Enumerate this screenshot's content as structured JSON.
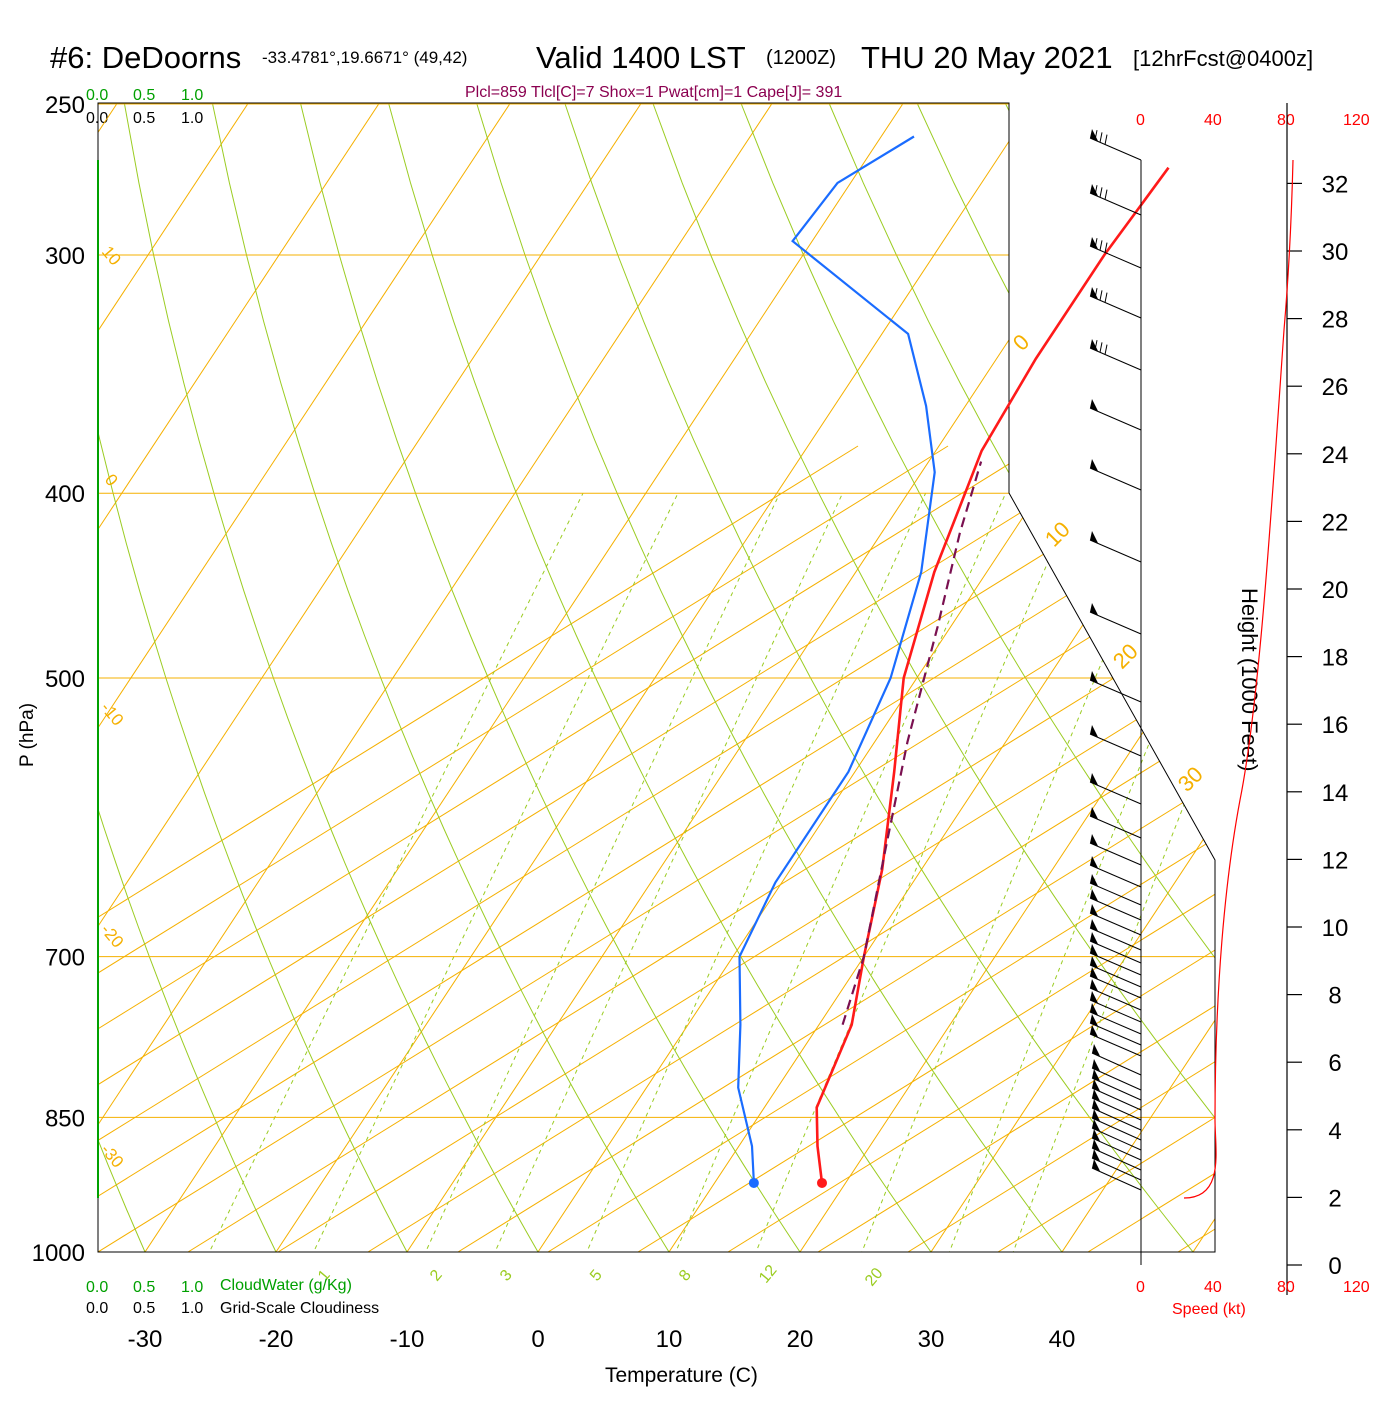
{
  "header": {
    "station": "#6: DeDoorns",
    "coords": "-33.4781°,19.6671° (49,42)",
    "valid": "Valid 1400 LST",
    "zulu": "(1200Z)",
    "date": "THU 20 May 2021",
    "forecast": "[12hrFcst@0400z]",
    "indices": "Plcl=859 Tlcl[C]=7 Shox=1 Pwat[cm]=1 Cape[J]= 391"
  },
  "scales": {
    "cloud_water_top": [
      "0.0",
      "0.5",
      "1.0"
    ],
    "cloudiness_top": [
      "0.0",
      "0.5",
      "1.0"
    ],
    "cloud_water_bottom": [
      "0.0",
      "0.5",
      "1.0"
    ],
    "cloud_water_label": "CloudWater (g/Kg)",
    "cloudiness_bottom": [
      "0.0",
      "0.5",
      "1.0"
    ],
    "cloudiness_label": "Grid-Scale Cloudiness",
    "speed_ticks": [
      "0",
      "40",
      "80",
      "120"
    ],
    "speed_label": "Speed (kt)"
  },
  "colors": {
    "isotherm": "#f5b000",
    "dry_adiabat": "#9bcc22",
    "mixing_ratio": "#9bcc22",
    "temperature": "#ff1a1a",
    "dewpoint": "#1a6cff",
    "parcel": "#7a1050",
    "cloud_axis": "#00a000",
    "speed": "#ff0000"
  },
  "chart_data": {
    "type": "line",
    "title": "#6: DeDoorns",
    "xlabel": "Temperature (C)",
    "ylabel": "P (hPa)",
    "y2label": "Height (1000 Feet)",
    "x_ticks": [
      -30,
      -20,
      -10,
      0,
      10,
      20,
      30,
      40
    ],
    "pressure_levels": [
      250,
      300,
      400,
      500,
      700,
      850,
      1000
    ],
    "height_ticks_kft": [
      0,
      2,
      4,
      6,
      8,
      10,
      12,
      14,
      16,
      18,
      20,
      22,
      24,
      26,
      28,
      30,
      32
    ],
    "isotherm_labels": [
      "10",
      "0",
      "-10",
      "-20",
      "-30",
      "0",
      "10",
      "20",
      "30"
    ],
    "mixing_ratio_labels": [
      "1",
      "2",
      "3",
      "5",
      "8",
      "12",
      "20"
    ],
    "series": [
      {
        "name": "Temperature",
        "points": [
          [
            18.2,
            920
          ],
          [
            16.0,
            880
          ],
          [
            14.0,
            840
          ],
          [
            12.5,
            760
          ],
          [
            10.0,
            700
          ],
          [
            7.0,
            630
          ],
          [
            3.0,
            560
          ],
          [
            -1.0,
            500
          ],
          [
            -4.0,
            440
          ],
          [
            -6.5,
            380
          ],
          [
            -7.0,
            340
          ],
          [
            -7.0,
            300
          ],
          [
            -6.5,
            270
          ]
        ]
      },
      {
        "name": "Dewpoint",
        "points": [
          [
            13.0,
            920
          ],
          [
            11.0,
            880
          ],
          [
            7.0,
            820
          ],
          [
            4.0,
            760
          ],
          [
            0.5,
            700
          ],
          [
            -0.5,
            640
          ],
          [
            -0.5,
            560
          ],
          [
            -2.0,
            500
          ],
          [
            -5.0,
            440
          ],
          [
            -9.0,
            390
          ],
          [
            -13.0,
            360
          ],
          [
            -18.0,
            330
          ],
          [
            -31.5,
            295
          ],
          [
            -31.0,
            275
          ],
          [
            -27.5,
            260
          ]
        ]
      },
      {
        "name": "Parcel",
        "points": [
          [
            11.8,
            760
          ],
          [
            10.0,
            700
          ],
          [
            6.0,
            610
          ],
          [
            2.5,
            540
          ],
          [
            -1.0,
            470
          ],
          [
            -4.0,
            420
          ],
          [
            -6.0,
            385
          ]
        ]
      }
    ]
  }
}
